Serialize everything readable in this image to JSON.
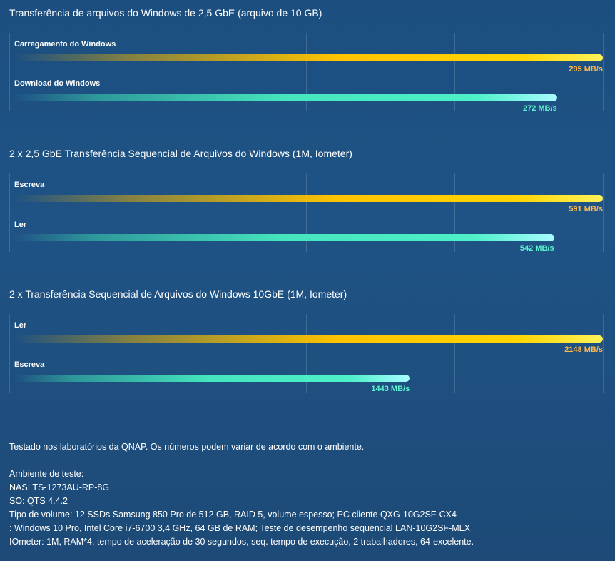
{
  "chart_data": [
    {
      "type": "bar",
      "title": "Transferência de arquivos do Windows de 2,5 GbE (arquivo de 10 GB)",
      "unit": "MB/s",
      "series": [
        {
          "name": "Carregamento do Windows",
          "value": 295,
          "label": "295 MB/s",
          "color": "#ffc400"
        },
        {
          "name": "Download do Windows",
          "value": 272,
          "label": "272 MB/s",
          "color": "#45e6bd"
        }
      ]
    },
    {
      "type": "bar",
      "title": "2 x 2,5 GbE Transferência Sequencial de Arquivos do Windows (1M, Iometer)",
      "unit": "MB/s",
      "series": [
        {
          "name": "Escreva",
          "value": 591,
          "label": "591 MB/s",
          "color": "#ffc400"
        },
        {
          "name": "Ler",
          "value": 542,
          "label": "542 MB/s",
          "color": "#45e6bd"
        }
      ]
    },
    {
      "type": "bar",
      "title": "2 x Transferência Sequencial de Arquivos do Windows 10GbE (1M, Iometer)",
      "unit": "MB/s",
      "series": [
        {
          "name": "Ler",
          "value": 2148,
          "label": "2148 MB/s",
          "color": "#ffc400"
        },
        {
          "name": "Escreva",
          "value": 1443,
          "label": "1443 MB/s",
          "color": "#45e6bd"
        }
      ]
    }
  ],
  "notes": {
    "disclaimer": "Testado nos laboratórios da QNAP. Os números podem variar de acordo com o ambiente.",
    "env_heading": "Ambiente de teste:",
    "nas": "NAS: TS-1273AU-RP-8G",
    "os": "SO: QTS 4.4.2",
    "volume": "Tipo de volume: 12 SSDs Samsung 850 Pro de 512 GB, RAID 5, volume espesso; PC cliente QXG-10G2SF-CX4",
    "client": ": Windows 10 Pro, Intel Core i7-6700 3,4 GHz, 64 GB de RAM; Teste de desempenho sequencial LAN-10G2SF-MLX",
    "iometer": "IOmeter: 1M, RAM*4, tempo de aceleração de 30 segundos, seq. tempo de execução, 2 trabalhadores, 64-excelente."
  }
}
